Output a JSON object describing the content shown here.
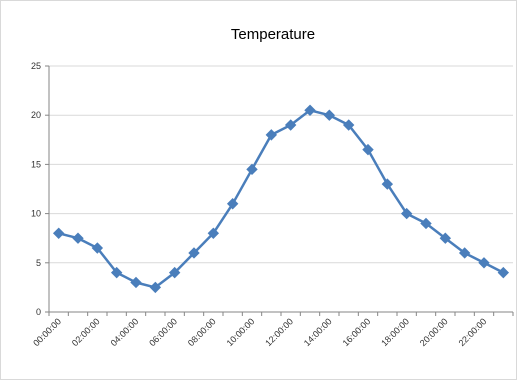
{
  "chart_data": {
    "type": "line",
    "title": "Temperature",
    "xlabel": "",
    "ylabel": "",
    "categories": [
      "00:00:00",
      "01:00:00",
      "02:00:00",
      "03:00:00",
      "04:00:00",
      "05:00:00",
      "06:00:00",
      "07:00:00",
      "08:00:00",
      "09:00:00",
      "10:00:00",
      "11:00:00",
      "12:00:00",
      "13:00:00",
      "14:00:00",
      "15:00:00",
      "16:00:00",
      "17:00:00",
      "18:00:00",
      "19:00:00",
      "20:00:00",
      "21:00:00",
      "22:00:00",
      "23:00:00"
    ],
    "tick_labels": [
      "00:00:00",
      "02:00:00",
      "04:00:00",
      "06:00:00",
      "08:00:00",
      "10:00:00",
      "12:00:00",
      "14:00:00",
      "16:00:00",
      "18:00:00",
      "20:00:00",
      "22:00:00"
    ],
    "y_ticks": [
      0,
      5,
      10,
      15,
      20,
      25
    ],
    "series": [
      {
        "values": [
          8,
          7.5,
          6.5,
          4,
          3,
          2.5,
          4,
          6,
          8,
          11,
          14.5,
          18,
          19,
          20.5,
          20,
          19,
          16.5,
          13,
          10,
          9,
          7.5,
          6,
          5,
          4
        ]
      }
    ],
    "ylim": [
      0,
      25
    ],
    "grid": "horizontal",
    "legend": "none",
    "colors": {
      "line": "#4a7ebb",
      "marker": "#4a7ebb",
      "grid": "#d9d9d9",
      "axis": "#868686"
    }
  }
}
